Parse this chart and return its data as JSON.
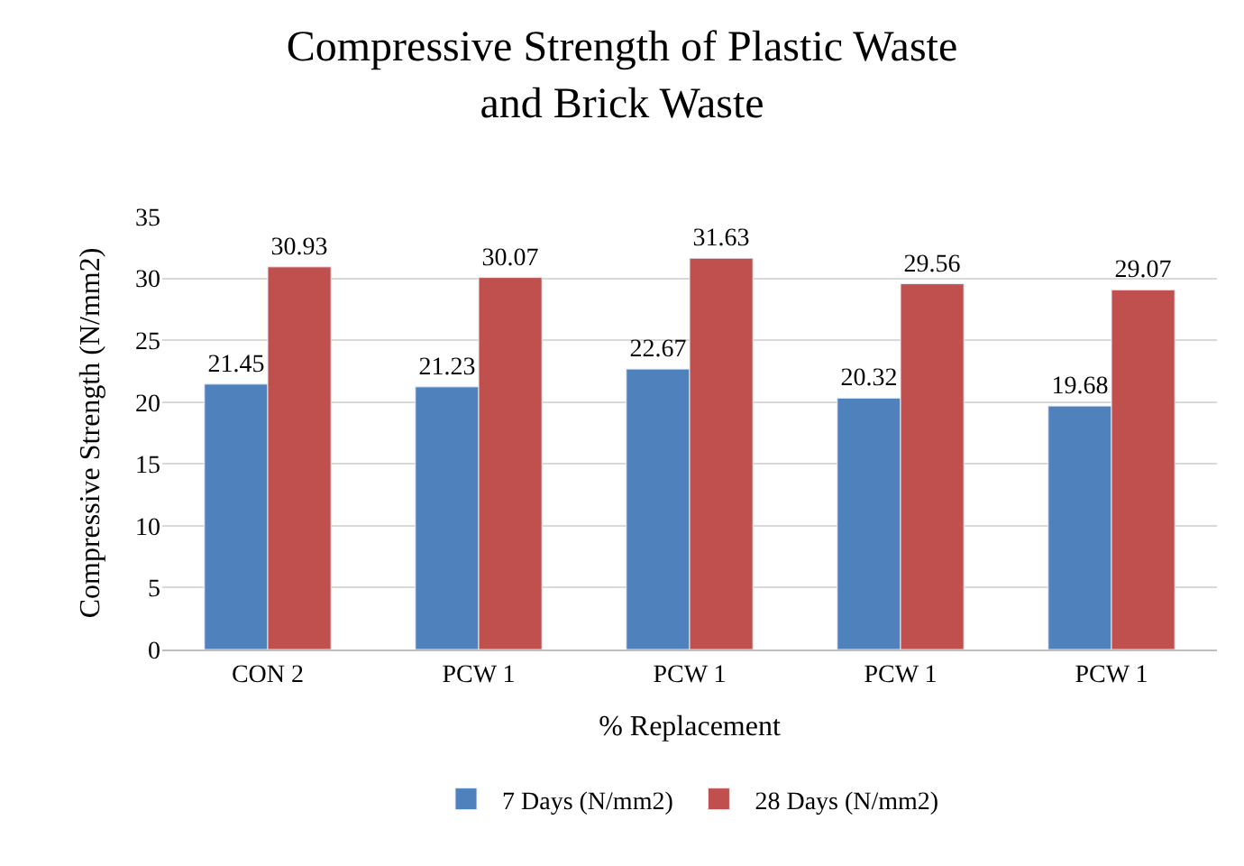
{
  "chart_data": {
    "type": "bar",
    "title": "Compressive Strength of Plastic Waste and Brick Waste",
    "xlabel": "% Replacement",
    "ylabel": "Compressive Strength (N/mm2)",
    "categories": [
      "CON 2",
      "PCW 1",
      "PCW 1",
      "PCW 1",
      "PCW 1"
    ],
    "series": [
      {
        "name": "7 Days (N/mm2)",
        "color": "#4f81bd",
        "values": [
          21.45,
          21.23,
          22.67,
          20.32,
          19.68
        ]
      },
      {
        "name": "28 Days (N/mm2)",
        "color": "#c0504d",
        "values": [
          30.93,
          30.07,
          31.63,
          29.56,
          29.07
        ]
      }
    ],
    "ylim": [
      0,
      35
    ],
    "yticks": [
      0,
      5,
      10,
      15,
      20,
      25,
      30,
      35
    ],
    "grid": "y",
    "legend": "bottom",
    "data_labels": true
  }
}
